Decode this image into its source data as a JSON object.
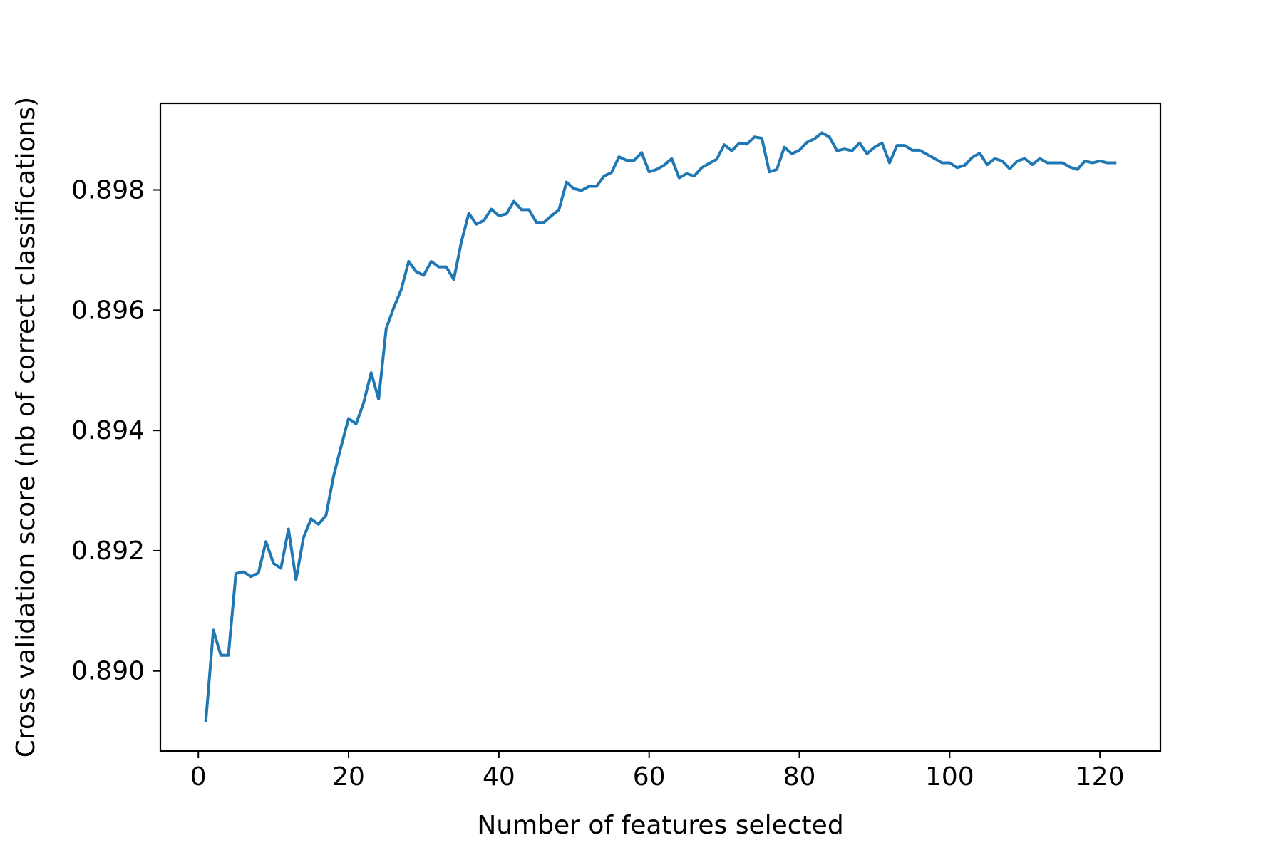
{
  "chart_data": {
    "type": "line",
    "title": "",
    "xlabel": "Number of features selected",
    "ylabel": "Cross validation score (nb of correct classifications)",
    "xlim": [
      -5.05,
      128.05
    ],
    "ylim": [
      0.88867,
      0.89944
    ],
    "xticks": [
      0,
      20,
      40,
      60,
      80,
      100,
      120
    ],
    "xtick_labels": [
      "0",
      "20",
      "40",
      "60",
      "80",
      "100",
      "120"
    ],
    "yticks": [
      0.89,
      0.892,
      0.894,
      0.896,
      0.898
    ],
    "ytick_labels": [
      "0.890",
      "0.892",
      "0.894",
      "0.896",
      "0.898"
    ],
    "grid": false,
    "legend": false,
    "series": [
      {
        "color": "#1f77b4",
        "x": [
          1,
          2,
          3,
          4,
          5,
          6,
          7,
          8,
          9,
          10,
          11,
          12,
          13,
          14,
          15,
          16,
          17,
          18,
          19,
          20,
          21,
          22,
          23,
          24,
          25,
          26,
          27,
          28,
          29,
          30,
          31,
          32,
          33,
          34,
          35,
          36,
          37,
          38,
          39,
          40,
          41,
          42,
          43,
          44,
          45,
          46,
          47,
          48,
          49,
          50,
          51,
          52,
          53,
          54,
          55,
          56,
          57,
          58,
          59,
          60,
          61,
          62,
          63,
          64,
          65,
          66,
          67,
          68,
          69,
          70,
          71,
          72,
          73,
          74,
          75,
          76,
          77,
          78,
          79,
          80,
          81,
          82,
          83,
          84,
          85,
          86,
          87,
          88,
          89,
          90,
          91,
          92,
          93,
          94,
          95,
          96,
          97,
          98,
          99,
          100,
          101,
          102,
          103,
          104,
          105,
          106,
          107,
          108,
          109,
          110,
          111,
          112,
          113,
          114,
          115,
          116,
          117,
          118,
          119,
          120,
          121,
          122
        ],
        "y": [
          0.88917,
          0.89068,
          0.89026,
          0.89026,
          0.89162,
          0.89165,
          0.89157,
          0.89163,
          0.89215,
          0.89179,
          0.89171,
          0.89236,
          0.89152,
          0.89222,
          0.89253,
          0.89244,
          0.89259,
          0.89324,
          0.89373,
          0.8942,
          0.89411,
          0.89446,
          0.89496,
          0.89452,
          0.89569,
          0.89604,
          0.89634,
          0.89681,
          0.89664,
          0.89658,
          0.89681,
          0.89672,
          0.89672,
          0.89651,
          0.89713,
          0.89761,
          0.89743,
          0.89749,
          0.89768,
          0.89757,
          0.8976,
          0.89781,
          0.89767,
          0.89767,
          0.89746,
          0.89746,
          0.89757,
          0.89767,
          0.89813,
          0.89802,
          0.89799,
          0.89806,
          0.89806,
          0.89823,
          0.89829,
          0.89855,
          0.89849,
          0.89849,
          0.89862,
          0.8983,
          0.89834,
          0.89841,
          0.89852,
          0.8982,
          0.89827,
          0.89823,
          0.89837,
          0.89844,
          0.89851,
          0.89875,
          0.89865,
          0.89878,
          0.89876,
          0.89888,
          0.89886,
          0.8983,
          0.89834,
          0.89871,
          0.8986,
          0.89866,
          0.89879,
          0.89885,
          0.89895,
          0.89888,
          0.89865,
          0.89868,
          0.89865,
          0.89878,
          0.8986,
          0.89871,
          0.89878,
          0.89845,
          0.89874,
          0.89874,
          0.89866,
          0.89866,
          0.89859,
          0.89852,
          0.89845,
          0.89845,
          0.89837,
          0.89841,
          0.89854,
          0.89861,
          0.89842,
          0.89852,
          0.89848,
          0.89835,
          0.89848,
          0.89852,
          0.89842,
          0.89852,
          0.89845,
          0.89845,
          0.89845,
          0.89838,
          0.89834,
          0.89848,
          0.89845,
          0.89848,
          0.89845,
          0.89845
        ]
      }
    ]
  }
}
